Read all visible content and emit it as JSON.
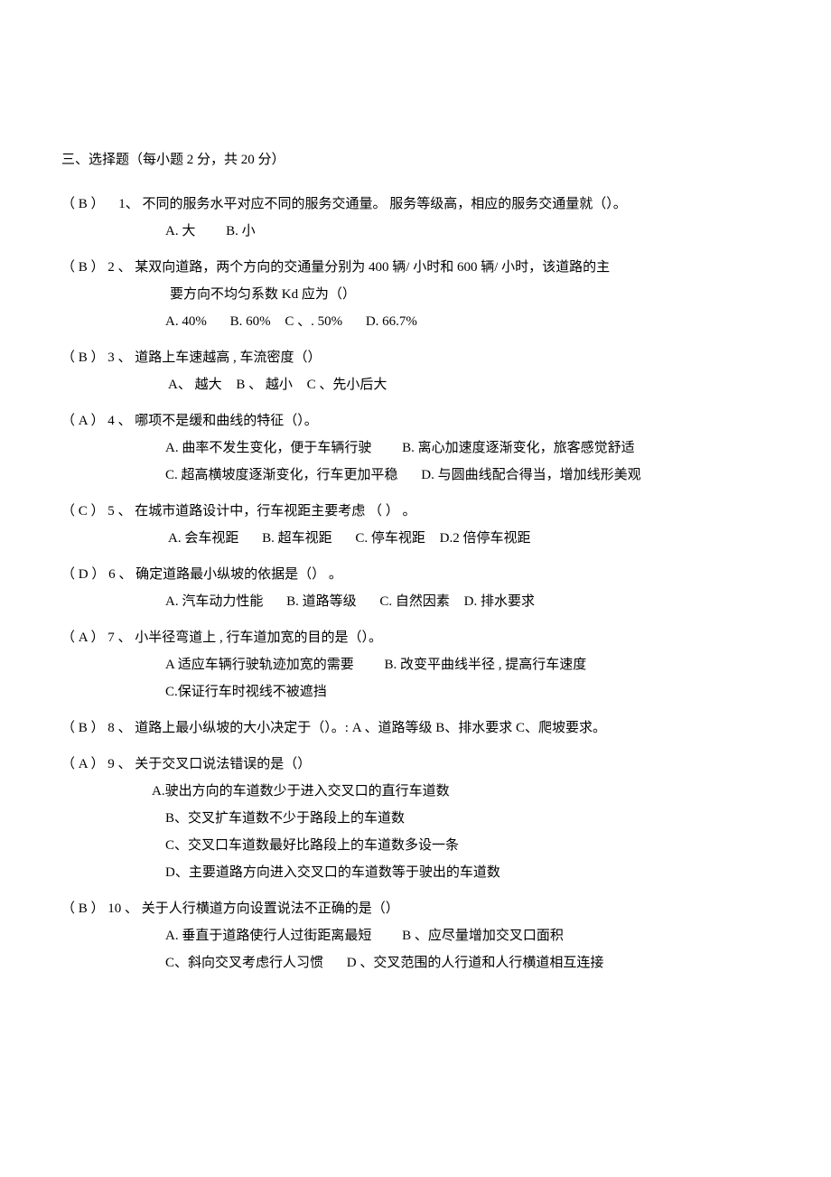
{
  "section": {
    "title": "三、选择题（每小题   2 分，共 20 分）"
  },
  "questions": {
    "q1": {
      "answer": "（ B ）",
      "number": "1、",
      "text": "不同的服务水平对应不同的服务交通量。     服务等级高，相应的服务交通量就（）。",
      "optA": "A. 大",
      "optB": "B.     小"
    },
    "q2": {
      "answer": "（ B   ）",
      "number": "2 、",
      "text1": "某双向道路，两个方向的交通量分别为     400 辆/ 小时和 600 辆/ 小时，该道路的主",
      "text2": "要方向不均匀系数 Kd 应为（）",
      "optA": "A. 40%",
      "optB": "B. 60%",
      "optC": "C      、. 50%",
      "optD": "D. 66.7%"
    },
    "q3": {
      "answer": "（ B  ）",
      "number": "3    、",
      "text": "道路上车速越高 , 车流密度（）",
      "optA": "A、 越大",
      "optB": "B  、 越小",
      "optC": "C 、先小后大"
    },
    "q4": {
      "answer": "（ A ）",
      "number": "4   、",
      "text": "哪项不是缓和曲线的特征（）。",
      "optA": "A. 曲率不发生变化，便于车辆行驶",
      "optB": "B.     离心加速度逐渐变化，旅客感觉舒适",
      "optC": "C. 超高横坡度逐渐变化，行车更加平稳",
      "optD": "D.    与圆曲线配合得当，增加线形美观"
    },
    "q5": {
      "answer": "（ C  ）",
      "number": "5    、",
      "text": "在城市道路设计中，行车视距主要考虑    （ ） 。",
      "optA": "A. 会车视距",
      "optB": "B.    超车视距",
      "optC": "C.    停车视距",
      "optD": "D.2       倍停车视距"
    },
    "q6": {
      "answer": "（ D  ）",
      "number": "6    、",
      "text": "确定道路最小纵坡的依据是（）   。",
      "optA": "A. 汽车动力性能",
      "optB": "B.    道路等级",
      "optC": "C.    自然因素",
      "optD": "D.      排水要求"
    },
    "q7": {
      "answer": "（ A ）",
      "number": "7   、",
      "text": "小半径弯道上 , 行车道加宽的目的是（）。",
      "optA": "A 适应车辆行驶轨迹加宽的需要",
      "optB": "B.    改变平曲线半径 , 提高行车速度",
      "optC": "C.保证行车时视线不被遮挡"
    },
    "q8": {
      "answer": "（ B   ）",
      "number": "8    、",
      "text": "道路上最小纵坡的大小决定于（）。: A 、道路等级  B、排水要求 C、爬坡要求。"
    },
    "q9": {
      "answer": "（ A  ）",
      "number": "9    、",
      "text": "关于交叉口说法错误的是（）",
      "optA": "A.驶出方向的车道数少于进入交叉口的直行车道数",
      "optB": "B、交叉扩车道数不少于路段上的车道数",
      "optC": "C、交叉口车道数最好比路段上的车道数多设一条",
      "optD": "D、主要道路方向进入交叉口的车道数等于驶出的车道数"
    },
    "q10": {
      "answer": "（ B ）",
      "number": "10     、",
      "text": "关于人行横道方向设置说法不正确的是（）",
      "optA": "A. 垂直于道路使行人过街距离最短",
      "optB": "B 、应尽量增加交叉口面积",
      "optC": "C、斜向交叉考虑行人习惯",
      "optD": "D   、交叉范围的人行道和人行横道相互连接"
    }
  }
}
